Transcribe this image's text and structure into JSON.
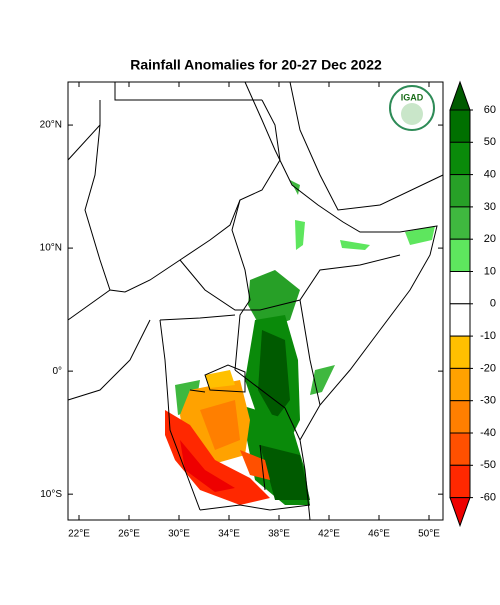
{
  "map": {
    "title": "Rainfall Anomalies for 20-27 Dec 2022",
    "logo": "IGAD",
    "lonlim": [
      21.12,
      51.12
    ],
    "latlim": [
      -12.1,
      23.5
    ],
    "lon_ticks": [
      {
        "value": 22,
        "label": "22°E"
      },
      {
        "value": 26,
        "label": "26°E"
      },
      {
        "value": 30,
        "label": "30°E"
      },
      {
        "value": 34,
        "label": "34°E"
      },
      {
        "value": 38,
        "label": "38°E"
      },
      {
        "value": 42,
        "label": "42°E"
      },
      {
        "value": 46,
        "label": "46°E"
      },
      {
        "value": 50,
        "label": "50°E"
      }
    ],
    "lat_ticks": [
      {
        "value": 20,
        "label": "20°N"
      },
      {
        "value": 10,
        "label": "10°N"
      },
      {
        "value": 0,
        "label": "0°"
      },
      {
        "value": -10,
        "label": "10°S"
      }
    ]
  },
  "colorbar": {
    "ticks": [
      60,
      50,
      40,
      30,
      20,
      10,
      0,
      -10,
      -20,
      -30,
      -40,
      -50,
      -60
    ],
    "colors": [
      "#005a00",
      "#007000",
      "#0a8a0a",
      "#27a027",
      "#3fb83f",
      "#5ee65e",
      "#ffffff",
      "#ffffff",
      "#ffc000",
      "#ffa200",
      "#ff7f00",
      "#ff5000",
      "#ff2800",
      "#ee0000"
    ]
  }
}
